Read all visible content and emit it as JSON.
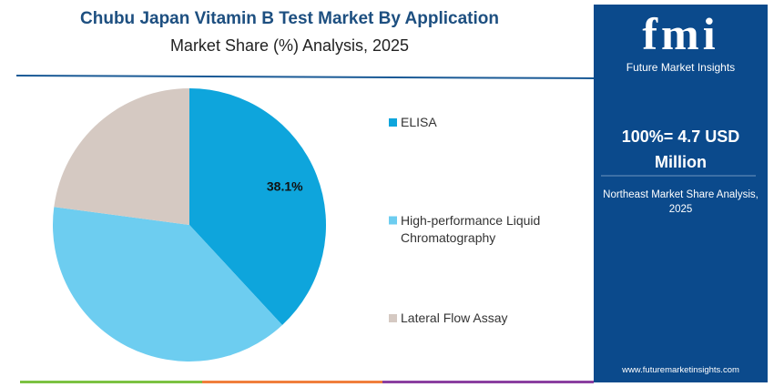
{
  "chart_data": {
    "type": "pie",
    "title": "Chubu Japan Vitamin B Test Market By Application",
    "subtitle": "Market Share (%) Analysis, 2025",
    "categories": [
      "ELISA",
      "High-performance Liquid Chromatography",
      "Lateral Flow Assay"
    ],
    "values": [
      38.1,
      39.0,
      22.9
    ],
    "value_labels": [
      "38.1%",
      null,
      null
    ],
    "colors": [
      "#0ea5dc",
      "#6dcdf0",
      "#d5c9c2"
    ]
  },
  "panel": {
    "logo": "fmi",
    "brand": "Future Market Insights",
    "total": "100%= 4.7 USD Million",
    "note": "Northeast Market Share Analysis, 2025",
    "url": "www.futuremarketinsights.com"
  }
}
